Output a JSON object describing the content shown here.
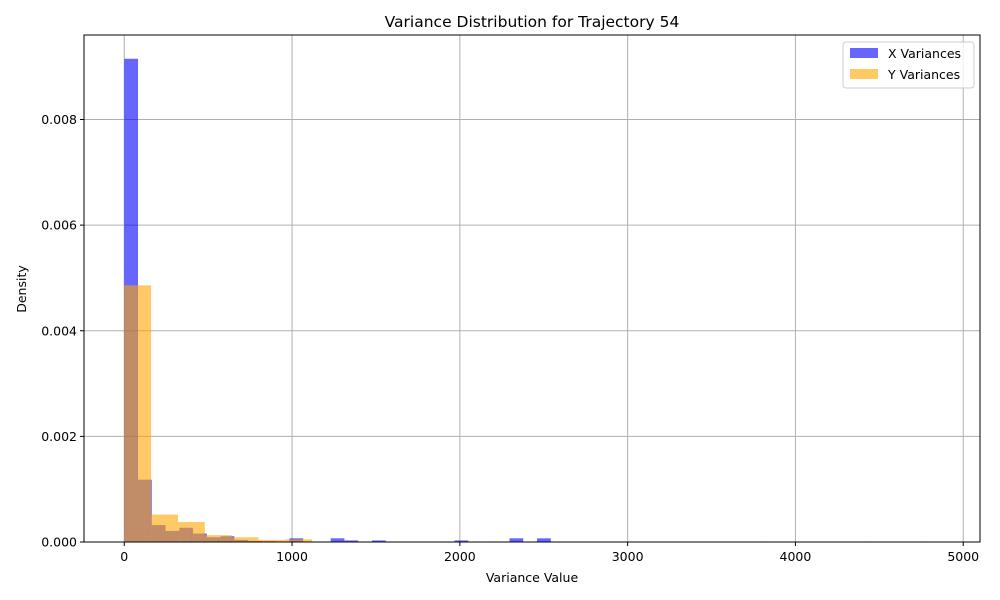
{
  "chart_data": {
    "type": "bar",
    "title": "Variance Distribution for Trajectory 54",
    "xlabel": "Variance Value",
    "ylabel": "Density",
    "xlim": [
      -240,
      5100
    ],
    "ylim": [
      0,
      0.0096
    ],
    "x_ticks": [
      0,
      1000,
      2000,
      3000,
      4000,
      5000
    ],
    "x_tick_labels": [
      "0",
      "1000",
      "2000",
      "3000",
      "4000",
      "5000"
    ],
    "y_ticks": [
      0,
      0.002,
      0.004,
      0.006,
      0.008
    ],
    "y_tick_labels": [
      "0.000",
      "0.002",
      "0.004",
      "0.006",
      "0.008"
    ],
    "grid": true,
    "legend_position": "top-right",
    "series": [
      {
        "name": "X Variances",
        "color": "#0000ff",
        "opacity": 0.6,
        "bin_width": 82,
        "bin_starts": [
          0,
          82,
          164,
          246,
          328,
          410,
          492,
          574,
          656,
          738,
          820,
          902,
          984,
          1066,
          1148,
          1230,
          1312,
          1394,
          1476,
          1558,
          1640,
          1722,
          1804,
          1886,
          1968,
          2050,
          2132,
          2214,
          2296,
          2378,
          2460
        ],
        "values": [
          0.00915,
          0.00118,
          0.00032,
          0.00021,
          0.00027,
          0.00016,
          9e-05,
          0.00011,
          4e-05,
          2e-05,
          1.5e-05,
          1e-05,
          7e-05,
          1e-05,
          0,
          7e-05,
          3e-05,
          0,
          3e-05,
          0,
          0,
          0,
          0,
          0,
          3e-05,
          0,
          0,
          0,
          7e-05,
          0,
          7e-05
        ]
      },
      {
        "name": "Y Variances",
        "color": "#ffa500",
        "opacity": 0.6,
        "bin_width": 80,
        "bin_starts": [
          0,
          80,
          160,
          240,
          320,
          400,
          480,
          560,
          640,
          720,
          800,
          880,
          960,
          1040,
          1520,
          2160,
          2960,
          3760,
          4400,
          4720
        ],
        "values": [
          0.00486,
          0.00486,
          0.00052,
          0.00052,
          0.00038,
          0.00038,
          0.00013,
          0.00013,
          9e-05,
          9e-05,
          4e-05,
          4e-05,
          5e-05,
          5e-05,
          1e-05,
          1e-05,
          1e-05,
          1e-05,
          1e-05,
          1e-05
        ]
      }
    ]
  }
}
